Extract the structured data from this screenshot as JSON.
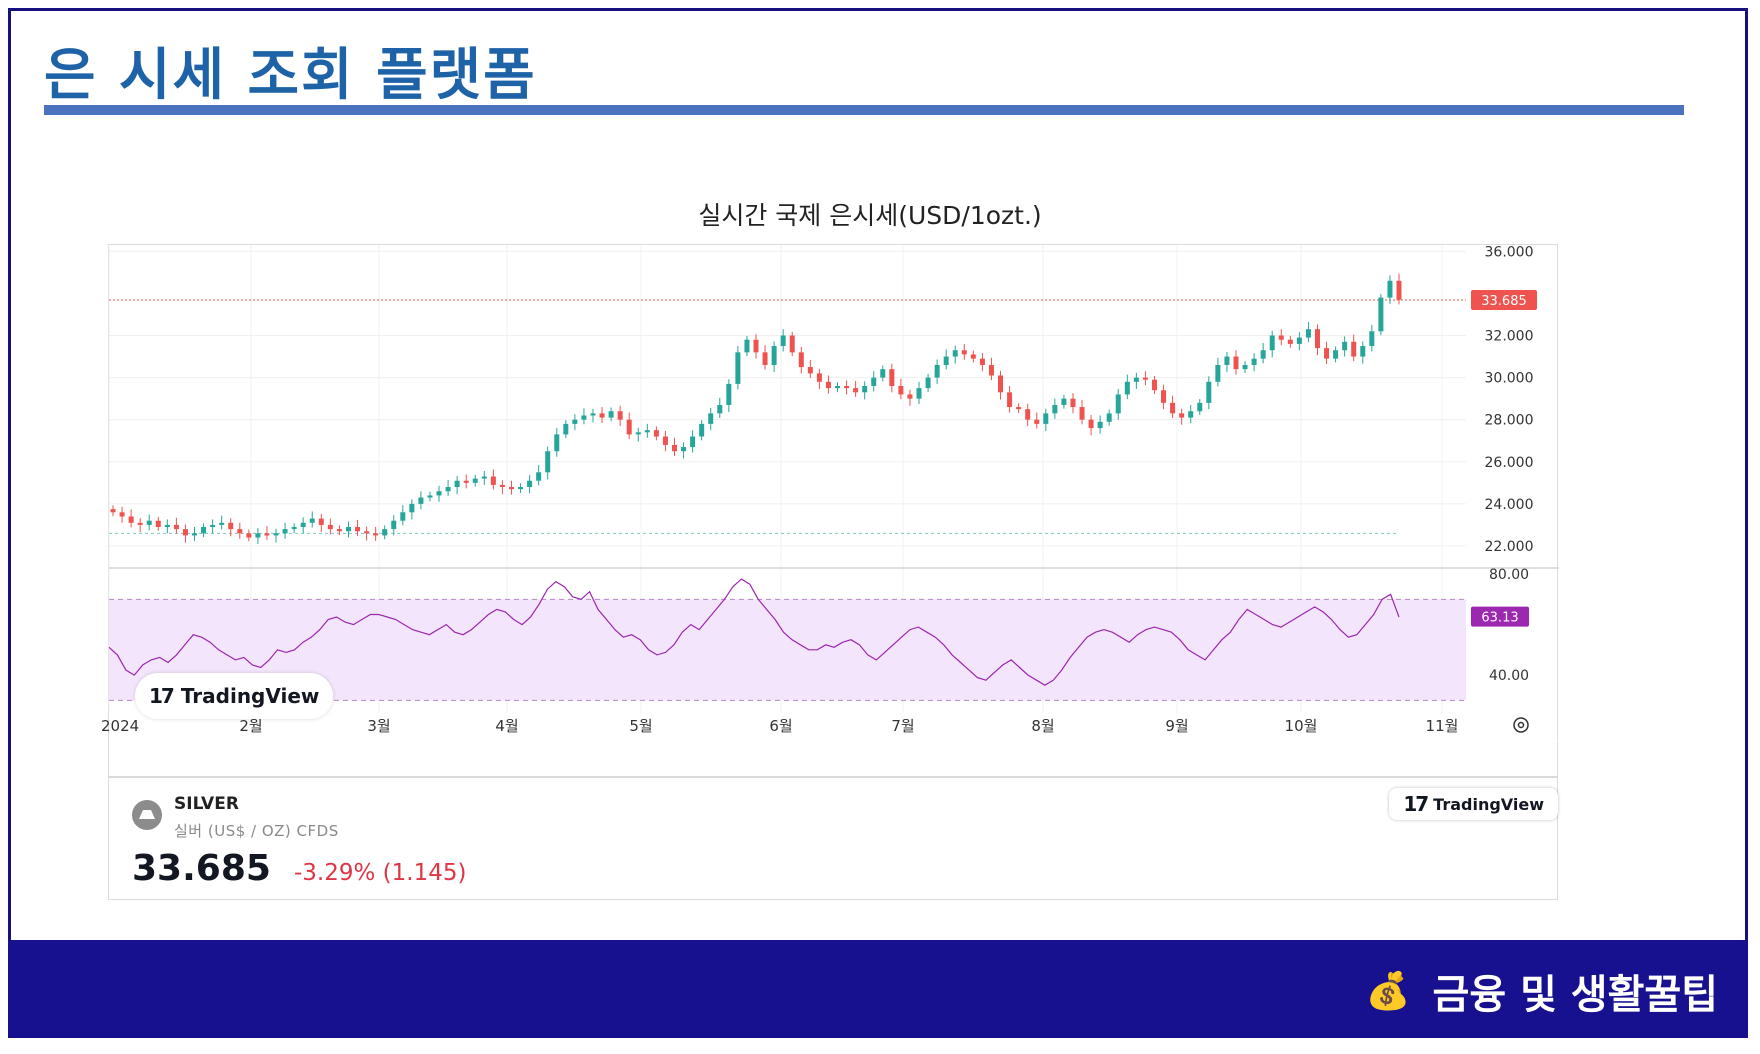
{
  "page": {
    "title": "은 시세 조회 플랫폼",
    "chart_heading": "실시간 국제 은시세(USD/1ozt.)",
    "footer_label": "금융 및 생활꿀팁",
    "footer_icon": "money-bag-icon"
  },
  "colors": {
    "title": "#1e62a8",
    "accent_rule": "#4a72be",
    "frame": "#17117f",
    "footer_bg": "#17118f",
    "up": "#26a69a",
    "down": "#ef5350",
    "rsi": "#9c27b0"
  },
  "widget": {
    "symbol": "SILVER",
    "description": "실버 (US$ / OZ) CFDS",
    "price": "33.685",
    "change": "-3.29% (1.145)",
    "brand": "TradingView",
    "price_tag": "33.685",
    "rsi_tag": "63.13"
  },
  "chart_data": [
    {
      "type": "candlestick",
      "title": "실시간 국제 은시세(USD/1ozt.)",
      "x_tick_labels": [
        "2024",
        "2월",
        "3월",
        "4월",
        "5월",
        "6월",
        "7월",
        "8월",
        "9월",
        "10월",
        "11월"
      ],
      "y_tick_labels": [
        "36.000",
        "32.000",
        "30.000",
        "28.000",
        "26.000",
        "24.000",
        "22.000"
      ],
      "ylim": [
        21,
        36.3
      ],
      "last_price": 33.685,
      "baseline": 22.6,
      "close_series": [
        {
          "month": "2024-01",
          "close": [
            23.6,
            23.4,
            23.1,
            23.0,
            23.2,
            22.9,
            23.0,
            22.8,
            22.5,
            22.6,
            22.9,
            23.0,
            23.1,
            22.8,
            22.6,
            22.4
          ]
        },
        {
          "month": "2024-02",
          "close": [
            22.6,
            22.5,
            22.6,
            22.8,
            22.9,
            23.1,
            23.3,
            23.0,
            22.8,
            22.7,
            22.9,
            22.7,
            22.6,
            22.5,
            22.8,
            23.2
          ]
        },
        {
          "month": "2024-03",
          "close": [
            23.6,
            24.0,
            24.3,
            24.4,
            24.6,
            24.8,
            25.1,
            25.0,
            25.2,
            25.3,
            24.9,
            24.8,
            24.7,
            24.8,
            25.1,
            25.5
          ]
        },
        {
          "month": "2024-04",
          "close": [
            26.5,
            27.3,
            27.8,
            28.0,
            28.2,
            28.3,
            28.1,
            28.4,
            28.0,
            27.3,
            27.4,
            27.5,
            27.2,
            26.8,
            26.5,
            26.7
          ]
        },
        {
          "month": "2024-05",
          "close": [
            27.2,
            27.8,
            28.3,
            28.7,
            29.7,
            31.2,
            31.8,
            31.2,
            30.6,
            31.5,
            32.0,
            31.2,
            30.5,
            30.2,
            29.8,
            29.5
          ]
        },
        {
          "month": "2024-06",
          "close": [
            29.6,
            29.5,
            29.3,
            29.6,
            30.0,
            30.4,
            29.6,
            29.2,
            29.0,
            29.5,
            30.0,
            30.6,
            31.0,
            31.3,
            31.1,
            30.9
          ]
        },
        {
          "month": "2024-07",
          "close": [
            30.6,
            30.1,
            29.3,
            28.6,
            28.5,
            28.0,
            27.8,
            28.3,
            28.7,
            29.0,
            28.6,
            28.0,
            27.6,
            27.9,
            28.3,
            29.2
          ]
        },
        {
          "month": "2024-08",
          "close": [
            29.8,
            30.0,
            29.9,
            29.4,
            28.8,
            28.3,
            28.1,
            28.4,
            28.8,
            29.8,
            30.6,
            31.0,
            30.4,
            30.6,
            30.9,
            31.3
          ]
        },
        {
          "month": "2024-09",
          "close": [
            32.0,
            31.8,
            31.6,
            31.9,
            32.3,
            31.4,
            30.9,
            31.3,
            31.7,
            31.0,
            31.5,
            32.2,
            33.8,
            34.6,
            33.7
          ]
        }
      ]
    },
    {
      "type": "line",
      "y_tick_labels": [
        "80.00",
        "40.00"
      ],
      "ylim": [
        25,
        82
      ],
      "band": [
        30,
        70
      ],
      "last_value": 63.13,
      "values": [
        51,
        48,
        42,
        40,
        44,
        46,
        47,
        45,
        48,
        52,
        56,
        55,
        53,
        50,
        48,
        46,
        47,
        44,
        43,
        46,
        50,
        49,
        50,
        53,
        55,
        58,
        62,
        63,
        61,
        60,
        62,
        64,
        64,
        63,
        62,
        60,
        58,
        57,
        56,
        58,
        60,
        57,
        56,
        58,
        61,
        64,
        66,
        65,
        62,
        60,
        63,
        68,
        74,
        77,
        75,
        71,
        70,
        73,
        66,
        62,
        58,
        55,
        56,
        54,
        50,
        48,
        49,
        52,
        57,
        60,
        58,
        62,
        66,
        70,
        75,
        78,
        76,
        70,
        66,
        62,
        57,
        54,
        52,
        50,
        50,
        52,
        51,
        53,
        54,
        52,
        48,
        46,
        49,
        52,
        55,
        58,
        59,
        57,
        55,
        52,
        48,
        45,
        42,
        39,
        38,
        41,
        44,
        46,
        43,
        40,
        38,
        36,
        38,
        42,
        47,
        51,
        55,
        57,
        58,
        57,
        55,
        53,
        56,
        58,
        59,
        58,
        57,
        54,
        50,
        48,
        46,
        50,
        54,
        57,
        62,
        66,
        64,
        62,
        60,
        59,
        61,
        63,
        65,
        67,
        65,
        62,
        58,
        55,
        56,
        60,
        64,
        70,
        72,
        63
      ]
    }
  ]
}
